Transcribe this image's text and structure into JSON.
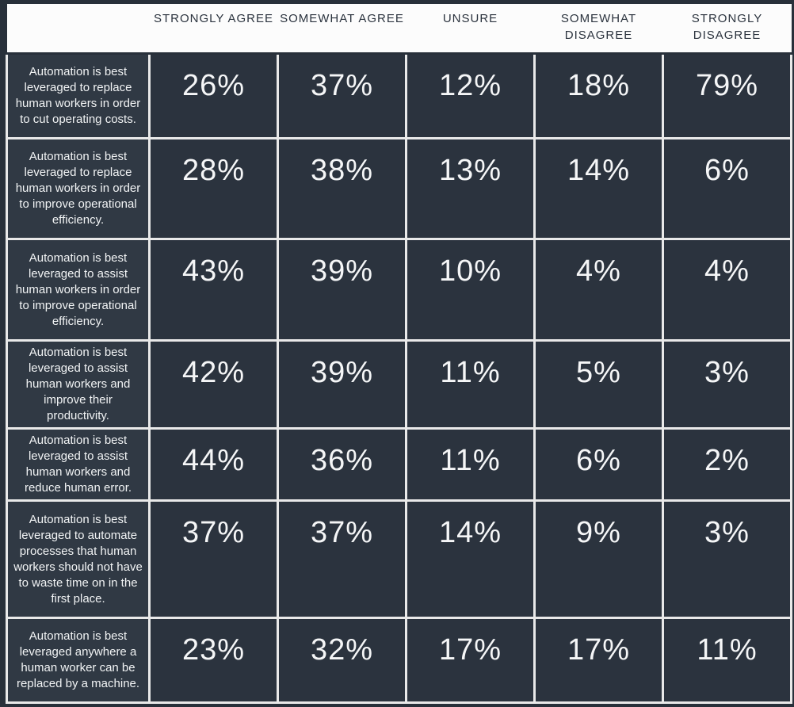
{
  "colors": {
    "background": "#28303a",
    "data_cell": "#2b333e",
    "statement_cell": "#303944",
    "header_bg": "#fcfcfc",
    "header_text": "#2b333e",
    "cell_text": "#f5f6f7",
    "grid_border": "#e9e9e9"
  },
  "table": {
    "corner_label": "",
    "columns": [
      "STRONGLY AGREE",
      "SOMEWHAT AGREE",
      "UNSURE",
      "SOMEWHAT DISAGREE",
      "STRONGLY DISAGREE"
    ],
    "rows": [
      {
        "statement": "Automation is best leveraged to replace human workers in order to cut operating costs.",
        "values": [
          "26%",
          "37%",
          "12%",
          "18%",
          "79%"
        ]
      },
      {
        "statement": "Automation is best leveraged to replace human workers in order to improve operational efficiency.",
        "values": [
          "28%",
          "38%",
          "13%",
          "14%",
          "6%"
        ]
      },
      {
        "statement": "Automation is best leveraged to assist human workers in order to improve operational efficiency.",
        "values": [
          "43%",
          "39%",
          "10%",
          "4%",
          "4%"
        ]
      },
      {
        "statement": "Automation is best leveraged to assist human workers and improve their productivity.",
        "values": [
          "42%",
          "39%",
          "11%",
          "5%",
          "3%"
        ]
      },
      {
        "statement": "Automation is best leveraged to assist human workers and reduce human error.",
        "values": [
          "44%",
          "36%",
          "11%",
          "6%",
          "2%"
        ]
      },
      {
        "statement": "Automation is best leveraged to automate processes that human workers should not have to waste time on in the first place.",
        "values": [
          "37%",
          "37%",
          "14%",
          "9%",
          "3%"
        ]
      },
      {
        "statement": "Automation is best leveraged anywhere a human worker can be replaced by a machine.",
        "values": [
          "23%",
          "32%",
          "17%",
          "17%",
          "11%"
        ]
      }
    ]
  },
  "chart_data": {
    "type": "table",
    "title": "",
    "columns": [
      "STRONGLY AGREE",
      "SOMEWHAT AGREE",
      "UNSURE",
      "SOMEWHAT DISAGREE",
      "STRONGLY DISAGREE"
    ],
    "rows": [
      {
        "label": "Automation is best leveraged to replace human workers in order to cut operating costs.",
        "values_pct": [
          26,
          37,
          12,
          18,
          79
        ]
      },
      {
        "label": "Automation is best leveraged to replace human workers in order to improve operational efficiency.",
        "values_pct": [
          28,
          38,
          13,
          14,
          6
        ]
      },
      {
        "label": "Automation is best leveraged to assist human workers in order to improve operational efficiency.",
        "values_pct": [
          43,
          39,
          10,
          4,
          4
        ]
      },
      {
        "label": "Automation is best leveraged to assist human workers and improve their productivity.",
        "values_pct": [
          42,
          39,
          11,
          5,
          3
        ]
      },
      {
        "label": "Automation is best leveraged to assist human workers and reduce human error.",
        "values_pct": [
          44,
          36,
          11,
          6,
          2
        ]
      },
      {
        "label": "Automation is best leveraged to automate processes that human workers should not have to waste time on in the first place.",
        "values_pct": [
          37,
          37,
          14,
          9,
          3
        ]
      },
      {
        "label": "Automation is best leveraged anywhere a human worker can be replaced by a machine.",
        "values_pct": [
          23,
          32,
          17,
          17,
          11
        ]
      }
    ]
  }
}
